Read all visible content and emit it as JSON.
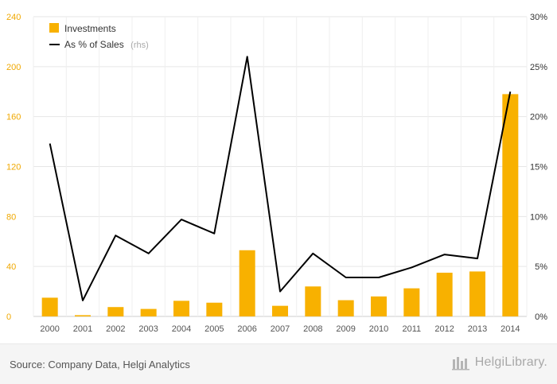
{
  "chart_data": {
    "type": "bar",
    "categories": [
      "2000",
      "2001",
      "2002",
      "2003",
      "2004",
      "2005",
      "2006",
      "2007",
      "2008",
      "2009",
      "2010",
      "2011",
      "2012",
      "2013",
      "2014"
    ],
    "series": [
      {
        "name": "Investments",
        "type": "bar",
        "axis": "left",
        "color": "#f8b100",
        "values": [
          15,
          1,
          7.5,
          6,
          12.5,
          11,
          53,
          8.5,
          24,
          13,
          16,
          22.5,
          35,
          36,
          178
        ]
      },
      {
        "name": "As % of Sales",
        "name_suffix": "(rhs)",
        "type": "line",
        "axis": "right",
        "color": "#000000",
        "values": [
          17.3,
          1.6,
          8.1,
          6.3,
          9.7,
          8.3,
          26.0,
          2.5,
          6.3,
          3.9,
          3.9,
          4.9,
          6.2,
          5.8,
          22.5
        ]
      }
    ],
    "y_left": {
      "min": 0,
      "max": 240,
      "ticks": [
        "0",
        "40",
        "80",
        "120",
        "160",
        "200",
        "240"
      ]
    },
    "y_right": {
      "min": 0,
      "max": 30,
      "ticks": [
        "0%",
        "5%",
        "10%",
        "15%",
        "20%",
        "25%",
        "30%"
      ]
    },
    "grid": true,
    "legend_position": "top-left"
  },
  "footer": {
    "source": "Source: Company Data, Helgi Analytics",
    "brand": "HelgiLibrary."
  }
}
